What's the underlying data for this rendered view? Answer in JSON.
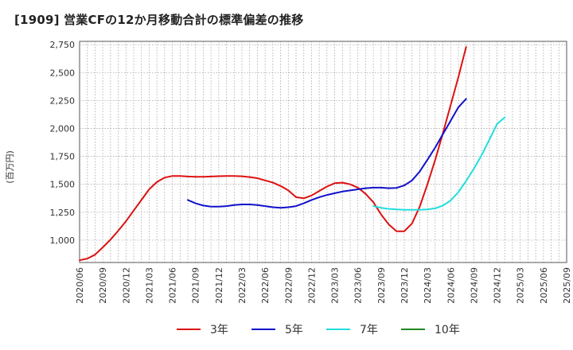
{
  "chart_data": {
    "type": "line",
    "title": "[1909]  営業CFの12か月移動合計の標準偏差の推移",
    "ylabel": "(百万円)",
    "xlabel": "",
    "ylim": [
      800,
      2780
    ],
    "yticks": [
      1000,
      1250,
      1500,
      1750,
      2000,
      2250,
      2500,
      2750
    ],
    "ytick_labels": [
      "1,000",
      "1,250",
      "1,500",
      "1,750",
      "2,000",
      "2,250",
      "2,500",
      "2,750"
    ],
    "x_start": "2020-06",
    "x_end": "2025-09",
    "xtick_labels": [
      "2020/06",
      "2020/09",
      "2020/12",
      "2021/03",
      "2021/06",
      "2021/09",
      "2021/12",
      "2022/03",
      "2022/06",
      "2022/09",
      "2022/12",
      "2023/03",
      "2023/06",
      "2023/09",
      "2023/12",
      "2024/03",
      "2024/06",
      "2024/09",
      "2024/12",
      "2025/03",
      "2025/06",
      "2025/09"
    ],
    "grid": true,
    "legend_position": "bottom",
    "series": [
      {
        "name": "3年",
        "color": "#dd1111",
        "start": "2020-06",
        "values": [
          820,
          835,
          870,
          935,
          1005,
          1085,
          1170,
          1265,
          1360,
          1455,
          1520,
          1560,
          1575,
          1575,
          1570,
          1568,
          1568,
          1570,
          1573,
          1575,
          1575,
          1572,
          1565,
          1555,
          1535,
          1515,
          1485,
          1445,
          1385,
          1375,
          1400,
          1440,
          1480,
          1510,
          1515,
          1500,
          1470,
          1415,
          1340,
          1230,
          1140,
          1080,
          1080,
          1150,
          1300,
          1500,
          1720,
          1960,
          2210,
          2460,
          2730
        ]
      },
      {
        "name": "5年",
        "color": "#1111cc",
        "start": "2021-08",
        "values": [
          1360,
          1330,
          1310,
          1300,
          1300,
          1305,
          1315,
          1320,
          1320,
          1315,
          1305,
          1295,
          1290,
          1295,
          1305,
          1330,
          1360,
          1385,
          1405,
          1420,
          1435,
          1445,
          1455,
          1465,
          1470,
          1470,
          1465,
          1468,
          1490,
          1535,
          1615,
          1720,
          1830,
          1950,
          2070,
          2190,
          2265
        ]
      },
      {
        "name": "7年",
        "color": "#22dddd",
        "start": "2023-08",
        "values": [
          1305,
          1290,
          1280,
          1275,
          1272,
          1272,
          1272,
          1275,
          1285,
          1310,
          1355,
          1430,
          1530,
          1640,
          1760,
          1900,
          2040,
          2100
        ]
      },
      {
        "name": "10年",
        "color": "#228822",
        "start": "2025-03",
        "values": []
      }
    ]
  }
}
